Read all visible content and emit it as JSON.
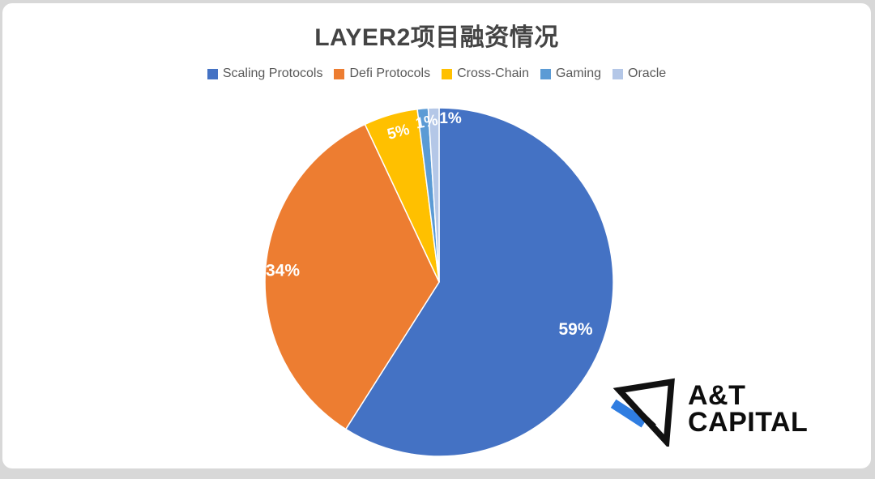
{
  "chart_data": {
    "type": "pie",
    "title": "LAYER2项目融资情况",
    "categories": [
      "Scaling Protocols",
      "Defi Protocols",
      "Cross-Chain",
      "Gaming",
      "Oracle"
    ],
    "values": [
      59,
      34,
      5,
      1,
      1
    ],
    "data_labels": [
      "59%",
      "34%",
      "5%",
      "1%",
      "1%"
    ],
    "colors": [
      "#4472C4",
      "#ED7D31",
      "#FFC000",
      "#5B9BD5",
      "#B4C7E7"
    ],
    "legend_position": "top",
    "start_angle_deg": 0,
    "direction": "clockwise",
    "slice_border_color": "#FFFFFF",
    "label_color": "#FFFFFF",
    "layout": {
      "label_radius_frac": [
        0.83,
        0.9,
        0.89,
        0.92,
        0.94
      ],
      "label_angle_offset_deg": [
        3,
        0.5,
        1,
        1,
        5.8
      ],
      "label_rotation_deg": [
        0,
        0,
        -15,
        -10,
        0
      ],
      "label_font_size": [
        21,
        21,
        19,
        19,
        19
      ]
    }
  },
  "title_color": "#444444",
  "legend_text_color": "#595959",
  "logo": {
    "line1": "A&T",
    "line2": "CAPITAL",
    "mark_color": "#111111",
    "accent_color": "#2F7DE1"
  }
}
